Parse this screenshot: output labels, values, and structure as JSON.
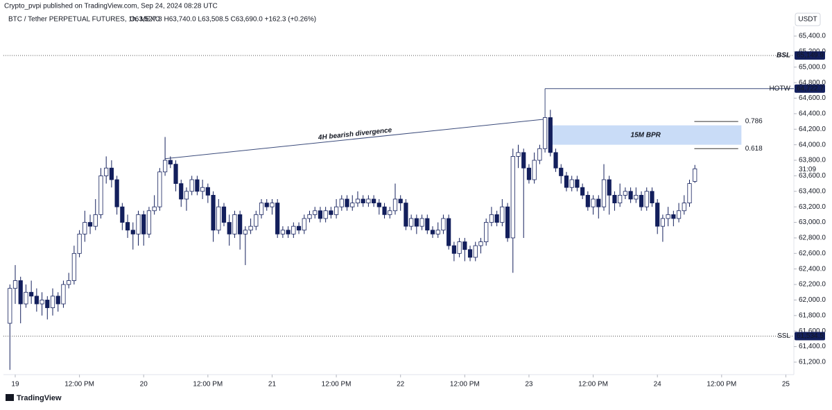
{
  "chart_data": {
    "type": "candlestick",
    "attribution": "Crypto_pvpi published on TradingView.com, Sep 24, 2024 08:28 UTC",
    "title": "BTC / Tether PERPETUAL FUTURES, 1h, MEXC",
    "ohlc_header": "O63,527.8  H63,740.0  L63,508.5  C63,690.0  +162.3 (+0.26%)",
    "currency": "USDT",
    "countdown": "31:09",
    "footer": "TradingView",
    "up_color": "#ffffff",
    "down_color": "#131f5c",
    "x": [
      -1,
      0,
      1,
      2,
      3,
      4,
      5,
      6,
      7,
      8,
      9,
      10,
      11,
      12,
      13,
      14,
      15,
      16,
      17,
      18,
      19,
      20,
      21,
      22,
      23,
      24,
      25,
      26,
      27,
      28,
      29,
      30,
      31,
      32,
      33,
      34,
      35,
      36,
      37,
      38,
      39,
      40,
      41,
      42,
      43,
      44,
      45,
      46,
      47,
      48,
      49,
      50,
      51,
      52,
      53,
      54,
      55,
      56,
      57,
      58,
      59,
      60,
      61,
      62,
      63,
      64,
      65,
      66,
      67,
      68,
      69,
      70,
      71,
      72,
      73,
      74,
      75,
      76,
      77,
      78,
      79,
      80,
      81,
      82,
      83,
      84,
      85,
      86,
      87,
      88,
      89,
      90,
      91,
      92,
      93,
      94,
      95,
      96,
      97,
      98,
      99,
      100,
      101,
      102,
      103,
      104,
      105,
      106,
      107,
      108,
      109,
      110,
      111,
      112,
      113,
      114,
      115,
      116,
      117,
      118,
      119,
      120,
      121,
      122,
      123,
      124,
      125,
      126,
      127
    ],
    "open": [
      61700,
      62150,
      62250,
      61950,
      62100,
      62050,
      61950,
      62000,
      61900,
      62050,
      61950,
      62200,
      62250,
      62600,
      62850,
      63000,
      62950,
      63100,
      63600,
      63700,
      63550,
      63200,
      63000,
      62900,
      62850,
      63100,
      62850,
      63150,
      63200,
      63650,
      63800,
      63750,
      63500,
      63300,
      63400,
      63550,
      63400,
      63450,
      63350,
      62900,
      63200,
      63000,
      62850,
      63100,
      62850,
      62900,
      62950,
      63100,
      63250,
      63200,
      63250,
      62850,
      62900,
      62850,
      62950,
      62900,
      63050,
      63100,
      63150,
      63050,
      63150,
      63100,
      63200,
      63300,
      63200,
      63250,
      63300,
      63250,
      63300,
      63250,
      63200,
      63100,
      63150,
      63300,
      63250,
      62950,
      63050,
      62950,
      63050,
      62900,
      62850,
      62900,
      63050,
      62700,
      62600,
      62750,
      62650,
      62550,
      62700,
      62750,
      63000,
      63100,
      63000,
      63200,
      62800,
      63850,
      63900,
      63700,
      63550,
      63800,
      63950,
      64350,
      63900,
      63700,
      63600,
      63450,
      63550,
      63450,
      63350,
      63200,
      63300,
      63200,
      63550,
      63350,
      63250,
      63350,
      63400,
      63300,
      63350,
      63200,
      63400,
      63250,
      62950,
      63050,
      63100,
      63050,
      63150,
      63250,
      63527.8
    ],
    "high": [
      62200,
      62450,
      62300,
      62200,
      62250,
      62150,
      62100,
      62050,
      62150,
      62100,
      62250,
      62350,
      62700,
      62900,
      63150,
      63100,
      63300,
      63700,
      63850,
      63800,
      63600,
      63250,
      63100,
      63000,
      63150,
      63150,
      63200,
      63350,
      63700,
      64100,
      63850,
      63800,
      63550,
      63450,
      63600,
      63600,
      63550,
      63500,
      63400,
      63300,
      63250,
      63100,
      63150,
      63150,
      62950,
      63050,
      63150,
      63300,
      63300,
      63300,
      63300,
      62950,
      62950,
      63000,
      63000,
      63100,
      63150,
      63200,
      63200,
      63200,
      63200,
      63300,
      63350,
      63350,
      63350,
      63400,
      63350,
      63350,
      63350,
      63300,
      63250,
      63200,
      63500,
      63350,
      63300,
      63100,
      63100,
      63100,
      63100,
      62950,
      63000,
      63100,
      63100,
      62750,
      62800,
      62800,
      62700,
      62750,
      62800,
      63050,
      63200,
      63150,
      63300,
      63250,
      63950,
      64000,
      63950,
      63750,
      63900,
      64000,
      64350,
      64450,
      63950,
      63750,
      63650,
      63600,
      63600,
      63500,
      63400,
      63350,
      63350,
      63750,
      63600,
      63400,
      63500,
      63450,
      63450,
      63450,
      63400,
      63450,
      63450,
      63300,
      63100,
      63200,
      63150,
      63250,
      63350,
      63550,
      63740
    ],
    "low": [
      61100,
      61950,
      61700,
      61900,
      61950,
      61850,
      61800,
      61750,
      61800,
      61850,
      61900,
      62150,
      62200,
      62550,
      62750,
      62850,
      62900,
      63050,
      63500,
      63450,
      63100,
      62900,
      62800,
      62650,
      62700,
      62700,
      62800,
      63100,
      63150,
      63600,
      63700,
      63400,
      63200,
      63150,
      63350,
      63350,
      63300,
      63250,
      62750,
      62850,
      62950,
      62700,
      62800,
      62650,
      62450,
      62850,
      62900,
      63050,
      63150,
      63100,
      62800,
      62800,
      62800,
      62800,
      62850,
      62850,
      63000,
      63050,
      63000,
      63000,
      63050,
      63050,
      63150,
      63150,
      63150,
      63200,
      63200,
      63200,
      63200,
      63100,
      63050,
      63050,
      63100,
      63150,
      62900,
      62900,
      62850,
      62900,
      62850,
      62800,
      62800,
      62850,
      62650,
      62500,
      62550,
      62500,
      62500,
      62500,
      62600,
      62700,
      62950,
      62950,
      62950,
      62750,
      62350,
      63700,
      62800,
      63500,
      63500,
      63750,
      63900,
      63850,
      63650,
      63500,
      63400,
      63400,
      63400,
      63300,
      63150,
      63100,
      63050,
      63150,
      63100,
      63150,
      63200,
      63300,
      63250,
      63250,
      63150,
      63150,
      63200,
      62850,
      62750,
      62950,
      62950,
      63000,
      63100,
      63200,
      63508.5
    ],
    "close": [
      62150,
      62250,
      61950,
      62100,
      62050,
      61950,
      62000,
      61900,
      62050,
      61950,
      62200,
      62250,
      62600,
      62850,
      63000,
      62950,
      63100,
      63600,
      63700,
      63550,
      63200,
      63000,
      62900,
      62850,
      63100,
      62850,
      63150,
      63200,
      63650,
      63800,
      63750,
      63500,
      63300,
      63400,
      63550,
      63400,
      63450,
      63350,
      62900,
      63200,
      63000,
      62850,
      63100,
      62850,
      62900,
      62950,
      63100,
      63250,
      63200,
      63250,
      62850,
      62900,
      62850,
      62950,
      62900,
      63050,
      63100,
      63150,
      63050,
      63150,
      63100,
      63200,
      63300,
      63200,
      63250,
      63300,
      63250,
      63300,
      63250,
      63200,
      63100,
      63150,
      63300,
      63250,
      62950,
      63050,
      62950,
      63050,
      62900,
      62850,
      62900,
      63050,
      62700,
      62600,
      62750,
      62650,
      62550,
      62700,
      62750,
      63000,
      63100,
      63000,
      63200,
      62800,
      63850,
      63900,
      63700,
      63550,
      63800,
      63950,
      64350,
      63900,
      63700,
      63600,
      63450,
      63550,
      63450,
      63350,
      63200,
      63300,
      63200,
      63550,
      63350,
      63250,
      63350,
      63400,
      63300,
      63350,
      63200,
      63400,
      63250,
      62950,
      63050,
      63100,
      63050,
      63150,
      63250,
      63500,
      63690
    ],
    "xlim": [
      -2.2,
      145.5
    ],
    "xticks": [
      {
        "value": 0,
        "label": "19"
      },
      {
        "value": 12,
        "label": "12:00 PM"
      },
      {
        "value": 24,
        "label": "20"
      },
      {
        "value": 36,
        "label": "12:00 PM"
      },
      {
        "value": 48,
        "label": "21"
      },
      {
        "value": 60,
        "label": "12:00 PM"
      },
      {
        "value": 72,
        "label": "22"
      },
      {
        "value": 84,
        "label": "12:00 PM"
      },
      {
        "value": 96,
        "label": "23"
      },
      {
        "value": 108,
        "label": "12:00 PM"
      },
      {
        "value": 120,
        "label": "24"
      },
      {
        "value": 132,
        "label": "12:00 PM"
      },
      {
        "value": 144,
        "label": "25"
      }
    ],
    "ylim": [
      61039,
      65525
    ],
    "yticks": [
      {
        "value": 61200,
        "label": "61,200.0"
      },
      {
        "value": 61400,
        "label": "61,400.0"
      },
      {
        "value": 61600,
        "label": "61,600.0"
      },
      {
        "value": 61800,
        "label": "61,800.0"
      },
      {
        "value": 62000,
        "label": "62,000.0"
      },
      {
        "value": 62200,
        "label": "62,200.0"
      },
      {
        "value": 62400,
        "label": "62,400.0"
      },
      {
        "value": 62600,
        "label": "62,600.0"
      },
      {
        "value": 62800,
        "label": "62,800.0"
      },
      {
        "value": 63000,
        "label": "63,000.0"
      },
      {
        "value": 63200,
        "label": "63,200.0"
      },
      {
        "value": 63400,
        "label": "63,400.0"
      },
      {
        "value": 63600,
        "label": "63,600.0"
      },
      {
        "value": 63800,
        "label": "63,800.0"
      },
      {
        "value": 64000,
        "label": "64,000.0"
      },
      {
        "value": 64200,
        "label": "64,200.0"
      },
      {
        "value": 64400,
        "label": "64,400.0"
      },
      {
        "value": 64600,
        "label": "64,600.0"
      },
      {
        "value": 64800,
        "label": "64,800.0"
      },
      {
        "value": 65000,
        "label": "65,000.0"
      },
      {
        "value": 65200,
        "label": "65,200.0"
      },
      {
        "value": 65400,
        "label": "65,400.0"
      }
    ],
    "levels": [
      {
        "label": "BSL",
        "value": 65149.9,
        "value_label": "65,149.9",
        "style": "dotted",
        "start": -2.2
      },
      {
        "label": "HOTW",
        "value": 64722.7,
        "value_label": "64,722.7",
        "style": "solid",
        "start": 99
      },
      {
        "label": "SSL",
        "value": 61534.5,
        "value_label": "61,534.5",
        "style": "dotted",
        "start": -2.2
      }
    ],
    "fib": [
      {
        "label": "0.786",
        "value": 64300
      },
      {
        "label": "0.618",
        "value": 63950
      }
    ],
    "fib_x": [
      126.9,
      135.1
    ],
    "zone": {
      "label": "15M BPR",
      "low": 64000,
      "high": 64250,
      "x": [
        99.9,
        135.7
      ]
    },
    "divergence": {
      "label": "4H bearish divergence",
      "x": [
        28,
        99
      ],
      "y": [
        63820,
        64330
      ]
    }
  }
}
